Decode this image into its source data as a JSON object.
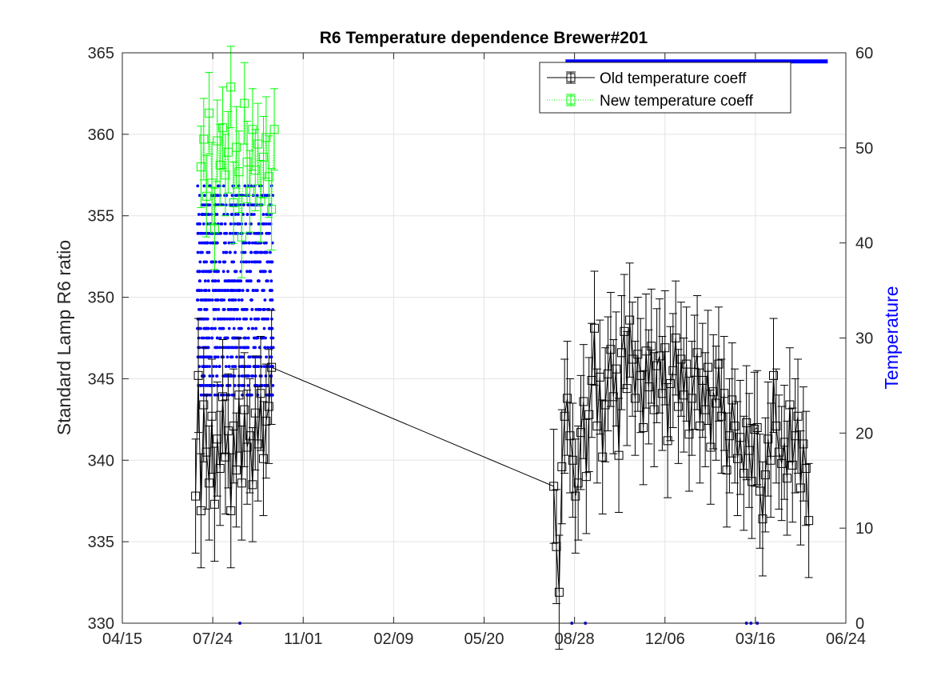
{
  "chart_data": {
    "type": "line",
    "title": "R6 Temperature dependence Brewer#201",
    "ylabel": "Standard Lamp R6 ratio",
    "y2label": "Temperature",
    "ylim": [
      330,
      365
    ],
    "y2lim": [
      0,
      60
    ],
    "yticks": [
      "330",
      "335",
      "340",
      "345",
      "350",
      "355",
      "360",
      "365"
    ],
    "y2ticks": [
      "0",
      "10",
      "20",
      "30",
      "40",
      "50",
      "60"
    ],
    "xlim": [
      "04/15",
      "06/24"
    ],
    "xticks": [
      "04/15",
      "07/24",
      "11/01",
      "02/09",
      "05/20",
      "08/28",
      "12/06",
      "03/16",
      "06/24"
    ],
    "grid": true,
    "legend": {
      "position": "top-right",
      "entries": [
        "Old temperature coeff",
        "New temperature coeff"
      ]
    },
    "colors": {
      "old": "#000000",
      "new": "#00ff00",
      "temperature": "#0000ff"
    },
    "series": [
      {
        "name": "Old temperature coeff",
        "axis": "left",
        "x": [
          "07/05",
          "07/08",
          "07/11",
          "07/14",
          "07/17",
          "07/20",
          "07/23",
          "07/26",
          "07/29",
          "08/01",
          "08/04",
          "08/07",
          "08/10",
          "08/13",
          "08/16",
          "08/19",
          "08/22",
          "08/25",
          "08/28",
          "08/31",
          "09/03",
          "09/06",
          "09/09",
          "09/12",
          "09/15",
          "09/18",
          "09/21",
          "09/24",
          "09/27",
          "08/05",
          "08/08",
          "08/11",
          "08/14",
          "08/17",
          "08/20",
          "08/23",
          "08/26",
          "08/29",
          "09/01",
          "09/04",
          "09/07",
          "09/10",
          "09/13",
          "09/16",
          "09/19",
          "09/22",
          "09/25",
          "09/28",
          "10/01",
          "10/04",
          "10/07",
          "10/10",
          "10/13",
          "10/16",
          "10/19",
          "10/22",
          "10/25",
          "10/28",
          "10/31",
          "11/03",
          "11/06",
          "11/09",
          "11/12",
          "11/15",
          "11/18",
          "11/21",
          "11/24",
          "11/27",
          "11/30",
          "12/03",
          "12/06",
          "12/09",
          "12/12",
          "12/15",
          "12/18",
          "12/21",
          "12/24",
          "12/27",
          "12/30",
          "01/02",
          "01/05",
          "01/08",
          "01/11",
          "01/14",
          "01/17",
          "01/20",
          "01/23",
          "01/26",
          "01/29",
          "02/01",
          "02/04",
          "02/07",
          "02/10",
          "02/13",
          "02/16",
          "02/19",
          "02/22",
          "02/25",
          "02/28",
          "03/03",
          "03/06",
          "03/09",
          "03/12",
          "03/15",
          "03/18",
          "03/21",
          "03/24",
          "03/27",
          "03/30",
          "04/02",
          "04/05",
          "04/08",
          "04/11",
          "04/14",
          "04/17",
          "04/20",
          "04/23",
          "04/26",
          "04/29",
          "05/02",
          "05/05",
          "05/08",
          "05/11",
          "05/14"
        ],
        "y": [
          337.8,
          345.2,
          336.9,
          343.4,
          340.5,
          338.6,
          342.7,
          337.3,
          341.3,
          339.5,
          343.9,
          340.2,
          341.8,
          336.9,
          342.1,
          339.4,
          344.0,
          338.6,
          343.1,
          340.8,
          341.5,
          338.5,
          342.9,
          341.0,
          344.1,
          340.1,
          342.4,
          343.3,
          345.7,
          338.4,
          334.7,
          331.9,
          339.6,
          342.7,
          343.8,
          341.5,
          340.0,
          337.8,
          338.6,
          341.7,
          343.6,
          339.0,
          342.8,
          344.9,
          348.1,
          342.1,
          345.1,
          340.2,
          343.4,
          345.3,
          346.8,
          343.9,
          345.6,
          340.3,
          346.6,
          347.9,
          344.4,
          348.6,
          346.2,
          343.8,
          346.5,
          345.2,
          342.0,
          346.7,
          344.5,
          347.0,
          343.1,
          345.8,
          346.4,
          344.1,
          346.9,
          341.2,
          344.7,
          345.5,
          347.5,
          343.3,
          346.2,
          344.0,
          345.9,
          341.6,
          343.8,
          345.4,
          346.6,
          342.1,
          344.9,
          343.1,
          345.7,
          340.8,
          344.2,
          343.5,
          345.9,
          342.7,
          344.1,
          339.4,
          341.5,
          343.7,
          342.1,
          340.1,
          341.4,
          339.2,
          342.3,
          340.6,
          338.7,
          341.9,
          342.0,
          338.1,
          336.4,
          339.1,
          341.3,
          340.0,
          345.2,
          342.1,
          340.5,
          339.8,
          341.1,
          338.9,
          343.4,
          339.7,
          341.5,
          342.7,
          338.3,
          341.0,
          339.5,
          336.3
        ],
        "err": 3.5
      },
      {
        "name": "New temperature coeff",
        "axis": "left",
        "x": [
          "07/11",
          "07/14",
          "07/17",
          "07/20",
          "07/23",
          "07/26",
          "07/29",
          "08/01",
          "08/04",
          "08/07",
          "08/10",
          "08/13",
          "08/16",
          "08/19",
          "08/22",
          "08/25",
          "08/28",
          "08/31",
          "09/03",
          "09/06",
          "09/09",
          "09/12",
          "09/15",
          "09/18",
          "09/21",
          "09/24",
          "09/27",
          "09/30"
        ],
        "y": [
          358.0,
          359.7,
          356.2,
          361.3,
          357.0,
          354.2,
          359.6,
          358.1,
          360.4,
          357.5,
          358.9,
          362.9,
          355.8,
          359.2,
          357.7,
          353.7,
          361.9,
          358.3,
          356.5,
          360.3,
          357.8,
          359.4,
          355.9,
          358.6,
          359.8,
          357.4,
          355.4,
          360.3
        ],
        "err": 2.5
      }
    ]
  }
}
